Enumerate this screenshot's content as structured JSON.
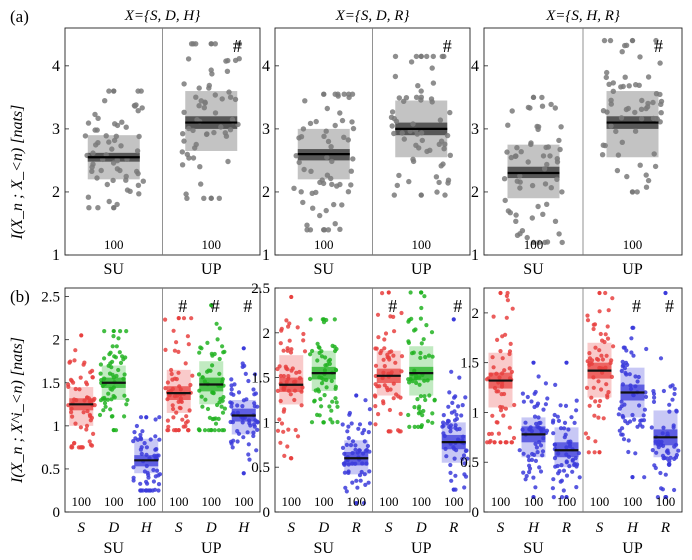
{
  "figure": {
    "row_a_label": "(a)",
    "row_b_label": "(b)",
    "ylabel_a": "I(X_n ; X_<n) [nats]",
    "ylabel_b": "I(X_n ; X^i_<n) [nats]",
    "colors": {
      "S": "#e8413f",
      "D": "#22b322",
      "H": "#3b3bdb",
      "R": "#3b3bdb",
      "grey": "#7a7a7a"
    }
  },
  "chart_data": [
    {
      "type": "box-scatter",
      "title": "X={S, D, H}",
      "ylim": [
        1,
        4.6
      ],
      "yticks": [
        1,
        2,
        3,
        4
      ],
      "groups": [
        {
          "label": "SU",
          "series": [
            {
              "name": "",
              "median": 2.55,
              "q1": 2.2,
              "q3": 2.9,
              "ci": [
                2.48,
                2.62
              ],
              "min": 1.75,
              "max": 3.6,
              "n_label": "100",
              "sig": ""
            }
          ]
        },
        {
          "label": "UP",
          "series": [
            {
              "name": "",
              "median": 3.1,
              "q1": 2.65,
              "q3": 3.6,
              "ci": [
                3.0,
                3.2
              ],
              "min": 1.9,
              "max": 4.35,
              "n_label": "100",
              "sig": "#"
            }
          ]
        }
      ]
    },
    {
      "type": "box-scatter",
      "title": "X={S, D, R}",
      "ylim": [
        1,
        4.6
      ],
      "yticks": [
        1,
        2,
        3,
        4
      ],
      "groups": [
        {
          "label": "SU",
          "series": [
            {
              "name": "",
              "median": 2.6,
              "q1": 2.2,
              "q3": 3.0,
              "ci": [
                2.5,
                2.68
              ],
              "min": 1.4,
              "max": 3.55,
              "n_label": "100",
              "sig": ""
            }
          ]
        },
        {
          "label": "UP",
          "series": [
            {
              "name": "",
              "median": 3.0,
              "q1": 2.55,
              "q3": 3.45,
              "ci": [
                2.9,
                3.1
              ],
              "min": 1.95,
              "max": 4.15,
              "n_label": "100",
              "sig": "#"
            }
          ]
        }
      ]
    },
    {
      "type": "box-scatter",
      "title": "X={S, H, R}",
      "ylim": [
        1,
        4.6
      ],
      "yticks": [
        1,
        2,
        3,
        4
      ],
      "groups": [
        {
          "label": "SU",
          "series": [
            {
              "name": "",
              "median": 2.3,
              "q1": 1.9,
              "q3": 2.75,
              "ci": [
                2.22,
                2.4
              ],
              "min": 1.2,
              "max": 3.5,
              "n_label": "100",
              "sig": ""
            }
          ]
        },
        {
          "label": "UP",
          "series": [
            {
              "name": "",
              "median": 3.1,
              "q1": 2.55,
              "q3": 3.6,
              "ci": [
                3.0,
                3.2
              ],
              "min": 2.0,
              "max": 4.4,
              "n_label": "100",
              "sig": "#"
            }
          ]
        }
      ]
    },
    {
      "type": "box-scatter",
      "ylim": [
        0,
        2.6
      ],
      "yticks": [
        0,
        0.5,
        1,
        1.5,
        2,
        2.5
      ],
      "groups": [
        {
          "label": "SU",
          "series": [
            {
              "name": "S",
              "median": 1.25,
              "q1": 1.0,
              "q3": 1.45,
              "ci": [
                1.18,
                1.32
              ],
              "min": 0.75,
              "max": 2.05,
              "n_label": "100",
              "sig": ""
            },
            {
              "name": "D",
              "median": 1.5,
              "q1": 1.3,
              "q3": 1.7,
              "ci": [
                1.44,
                1.56
              ],
              "min": 0.95,
              "max": 2.1,
              "n_label": "100",
              "sig": ""
            },
            {
              "name": "H",
              "median": 0.6,
              "q1": 0.45,
              "q3": 0.85,
              "ci": [
                0.53,
                0.66
              ],
              "min": 0.25,
              "max": 1.1,
              "n_label": "100",
              "sig": ""
            }
          ]
        },
        {
          "label": "UP",
          "series": [
            {
              "name": "S",
              "median": 1.38,
              "q1": 1.15,
              "q3": 1.65,
              "ci": [
                1.3,
                1.46
              ],
              "min": 0.95,
              "max": 2.25,
              "n_label": "100",
              "sig": "#"
            },
            {
              "name": "D",
              "median": 1.48,
              "q1": 1.25,
              "q3": 1.75,
              "ci": [
                1.4,
                1.56
              ],
              "min": 0.95,
              "max": 2.4,
              "n_label": "100",
              "sig": "#"
            },
            {
              "name": "H",
              "median": 1.12,
              "q1": 0.9,
              "q3": 1.3,
              "ci": [
                1.05,
                1.2
              ],
              "min": 0.45,
              "max": 1.9,
              "n_label": "100",
              "sig": "#"
            }
          ]
        }
      ]
    },
    {
      "type": "box-scatter",
      "ylim": [
        0,
        2.5
      ],
      "yticks": [
        0,
        0.5,
        1,
        1.5,
        2,
        2.5
      ],
      "groups": [
        {
          "label": "SU",
          "series": [
            {
              "name": "S",
              "median": 1.42,
              "q1": 1.2,
              "q3": 1.75,
              "ci": [
                1.34,
                1.5
              ],
              "min": 0.6,
              "max": 2.4,
              "n_label": "100",
              "sig": ""
            },
            {
              "name": "D",
              "median": 1.55,
              "q1": 1.35,
              "q3": 1.8,
              "ci": [
                1.48,
                1.62
              ],
              "min": 1.0,
              "max": 2.15,
              "n_label": "100",
              "sig": ""
            },
            {
              "name": "R",
              "median": 0.6,
              "q1": 0.42,
              "q3": 0.8,
              "ci": [
                0.52,
                0.67
              ],
              "min": 0.1,
              "max": 1.3,
              "n_label": "100",
              "sig": ""
            }
          ]
        },
        {
          "label": "UP",
          "series": [
            {
              "name": "S",
              "median": 1.52,
              "q1": 1.3,
              "q3": 1.8,
              "ci": [
                1.44,
                1.6
              ],
              "min": 0.9,
              "max": 2.45,
              "n_label": "100",
              "sig": "#"
            },
            {
              "name": "D",
              "median": 1.55,
              "q1": 1.3,
              "q3": 1.85,
              "ci": [
                1.47,
                1.62
              ],
              "min": 0.95,
              "max": 2.45,
              "n_label": "100",
              "sig": ""
            },
            {
              "name": "R",
              "median": 0.78,
              "q1": 0.55,
              "q3": 1.0,
              "ci": [
                0.7,
                0.86
              ],
              "min": 0.25,
              "max": 2.15,
              "n_label": "100",
              "sig": "#"
            }
          ]
        }
      ]
    },
    {
      "type": "box-scatter",
      "ylim": [
        0,
        2.25
      ],
      "yticks": [
        0,
        0.5,
        1,
        1.5,
        2
      ],
      "groups": [
        {
          "label": "SU",
          "series": [
            {
              "name": "S",
              "median": 1.32,
              "q1": 1.05,
              "q3": 1.6,
              "ci": [
                1.24,
                1.4
              ],
              "min": 0.7,
              "max": 2.2,
              "n_label": "100",
              "sig": ""
            },
            {
              "name": "H",
              "median": 0.78,
              "q1": 0.55,
              "q3": 0.95,
              "ci": [
                0.7,
                0.86
              ],
              "min": 0.15,
              "max": 1.5,
              "n_label": "100",
              "sig": ""
            },
            {
              "name": "R",
              "median": 0.62,
              "q1": 0.45,
              "q3": 0.85,
              "ci": [
                0.55,
                0.7
              ],
              "min": 0.15,
              "max": 1.5,
              "n_label": "100",
              "sig": ""
            }
          ]
        },
        {
          "label": "UP",
          "series": [
            {
              "name": "S",
              "median": 1.42,
              "q1": 1.15,
              "q3": 1.7,
              "ci": [
                1.34,
                1.5
              ],
              "min": 0.6,
              "max": 2.2,
              "n_label": "100",
              "sig": ""
            },
            {
              "name": "H",
              "median": 1.2,
              "q1": 0.95,
              "q3": 1.45,
              "ci": [
                1.12,
                1.28
              ],
              "min": 0.35,
              "max": 1.85,
              "n_label": "100",
              "sig": "#"
            },
            {
              "name": "R",
              "median": 0.75,
              "q1": 0.55,
              "q3": 1.02,
              "ci": [
                0.67,
                0.83
              ],
              "min": 0.15,
              "max": 2.2,
              "n_label": "100",
              "sig": "#"
            }
          ]
        }
      ]
    }
  ]
}
